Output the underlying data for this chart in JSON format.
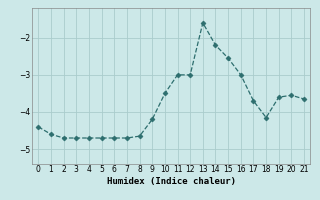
{
  "x": [
    0,
    1,
    2,
    3,
    4,
    5,
    6,
    7,
    8,
    9,
    10,
    11,
    12,
    13,
    14,
    15,
    16,
    17,
    18,
    19,
    20,
    21
  ],
  "y": [
    -4.4,
    -4.6,
    -4.7,
    -4.7,
    -4.7,
    -4.7,
    -4.7,
    -4.7,
    -4.65,
    -4.2,
    -3.5,
    -3.0,
    -3.0,
    -1.6,
    -2.2,
    -2.55,
    -3.0,
    -3.7,
    -4.15,
    -3.6,
    -3.55,
    -3.65
  ],
  "line_color": "#2d6e6e",
  "marker": "D",
  "marker_size": 2.5,
  "bg_color": "#cce8e8",
  "grid_color": "#aacccc",
  "xlabel": "Humidex (Indice chaleur)",
  "ylim": [
    -5.4,
    -1.2
  ],
  "xlim": [
    -0.5,
    21.5
  ],
  "yticks": [
    -5,
    -4,
    -3,
    -2
  ],
  "xticks": [
    0,
    1,
    2,
    3,
    4,
    5,
    6,
    7,
    8,
    9,
    10,
    11,
    12,
    13,
    14,
    15,
    16,
    17,
    18,
    19,
    20,
    21
  ]
}
